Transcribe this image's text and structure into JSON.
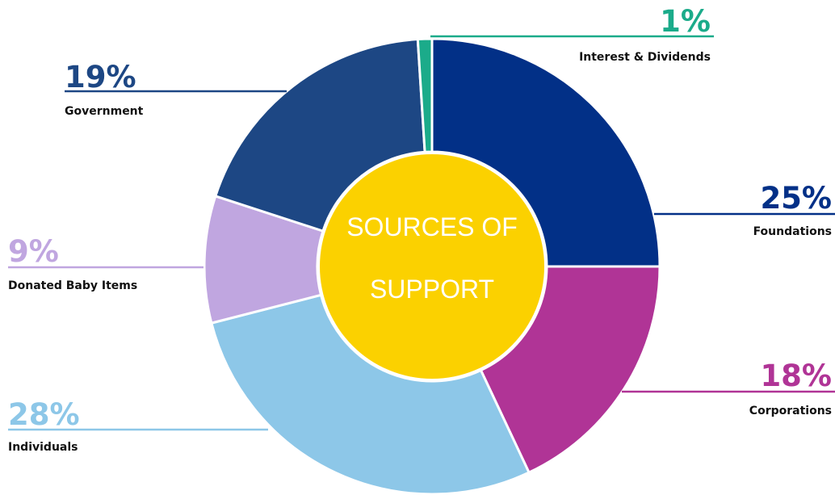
{
  "chart_data": {
    "type": "pie",
    "style": "donut",
    "center_label": [
      "SOURCES OF",
      "SUPPORT"
    ],
    "slices": [
      {
        "label": "Foundations",
        "value": 25,
        "value_label": "25%",
        "color": "#023087"
      },
      {
        "label": "Corporations",
        "value": 18,
        "value_label": "18%",
        "color": "#B03496"
      },
      {
        "label": "Individuals",
        "value": 28,
        "value_label": "28%",
        "color": "#8DC7E8"
      },
      {
        "label": "Donated Baby Items",
        "value": 9,
        "value_label": "9%",
        "color": "#C0A6E0"
      },
      {
        "label": "Government",
        "value": 19,
        "value_label": "19%",
        "color": "#1D4784"
      },
      {
        "label": "Interest & Dividends",
        "value": 1,
        "value_label": "1%",
        "color": "#1BAB8A"
      }
    ],
    "center_color": "#FBD100"
  }
}
